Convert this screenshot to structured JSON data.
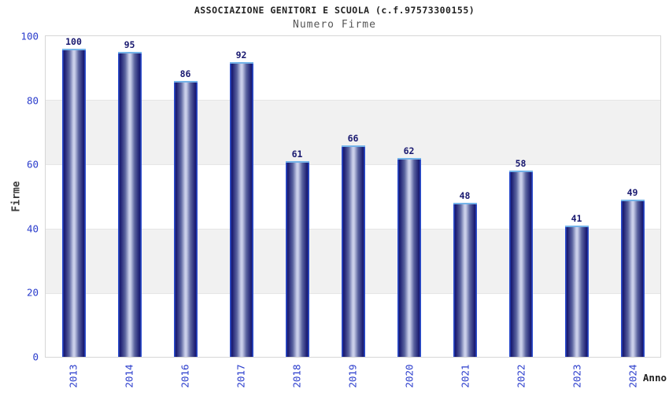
{
  "chart_data": {
    "type": "bar",
    "title": "ASSOCIAZIONE GENITORI E SCUOLA (c.f.97573300155)",
    "subtitle": "Numero Firme",
    "xlabel": "Anno",
    "ylabel": "Firme",
    "categories": [
      "2013",
      "2014",
      "2016",
      "2017",
      "2018",
      "2019",
      "2020",
      "2021",
      "2022",
      "2023",
      "2024"
    ],
    "values": [
      100,
      95,
      86,
      92,
      61,
      66,
      62,
      48,
      58,
      41,
      49
    ],
    "yticks": [
      0,
      20,
      40,
      60,
      80,
      100
    ],
    "ylim": [
      0,
      100
    ],
    "grid": "alternating horizontal bands every 20 units (white / light gray)",
    "legend": "none",
    "bar_value_labels_shown": true,
    "colors": {
      "bar_dark": "#17176e",
      "bar_light_center": "#c9cee9",
      "bar_bright_edge": "#2c4ecd",
      "bar_top_cap": "#74b3e9",
      "axis_tick_label": "#2a3ccc",
      "value_label": "#191970",
      "band_gray": "#f1f1f1",
      "plot_border": "#d6d6d6",
      "title": "#222222",
      "subtitle": "#555555",
      "axis_name": "#3a3a3a",
      "background": "#ffffff"
    }
  }
}
